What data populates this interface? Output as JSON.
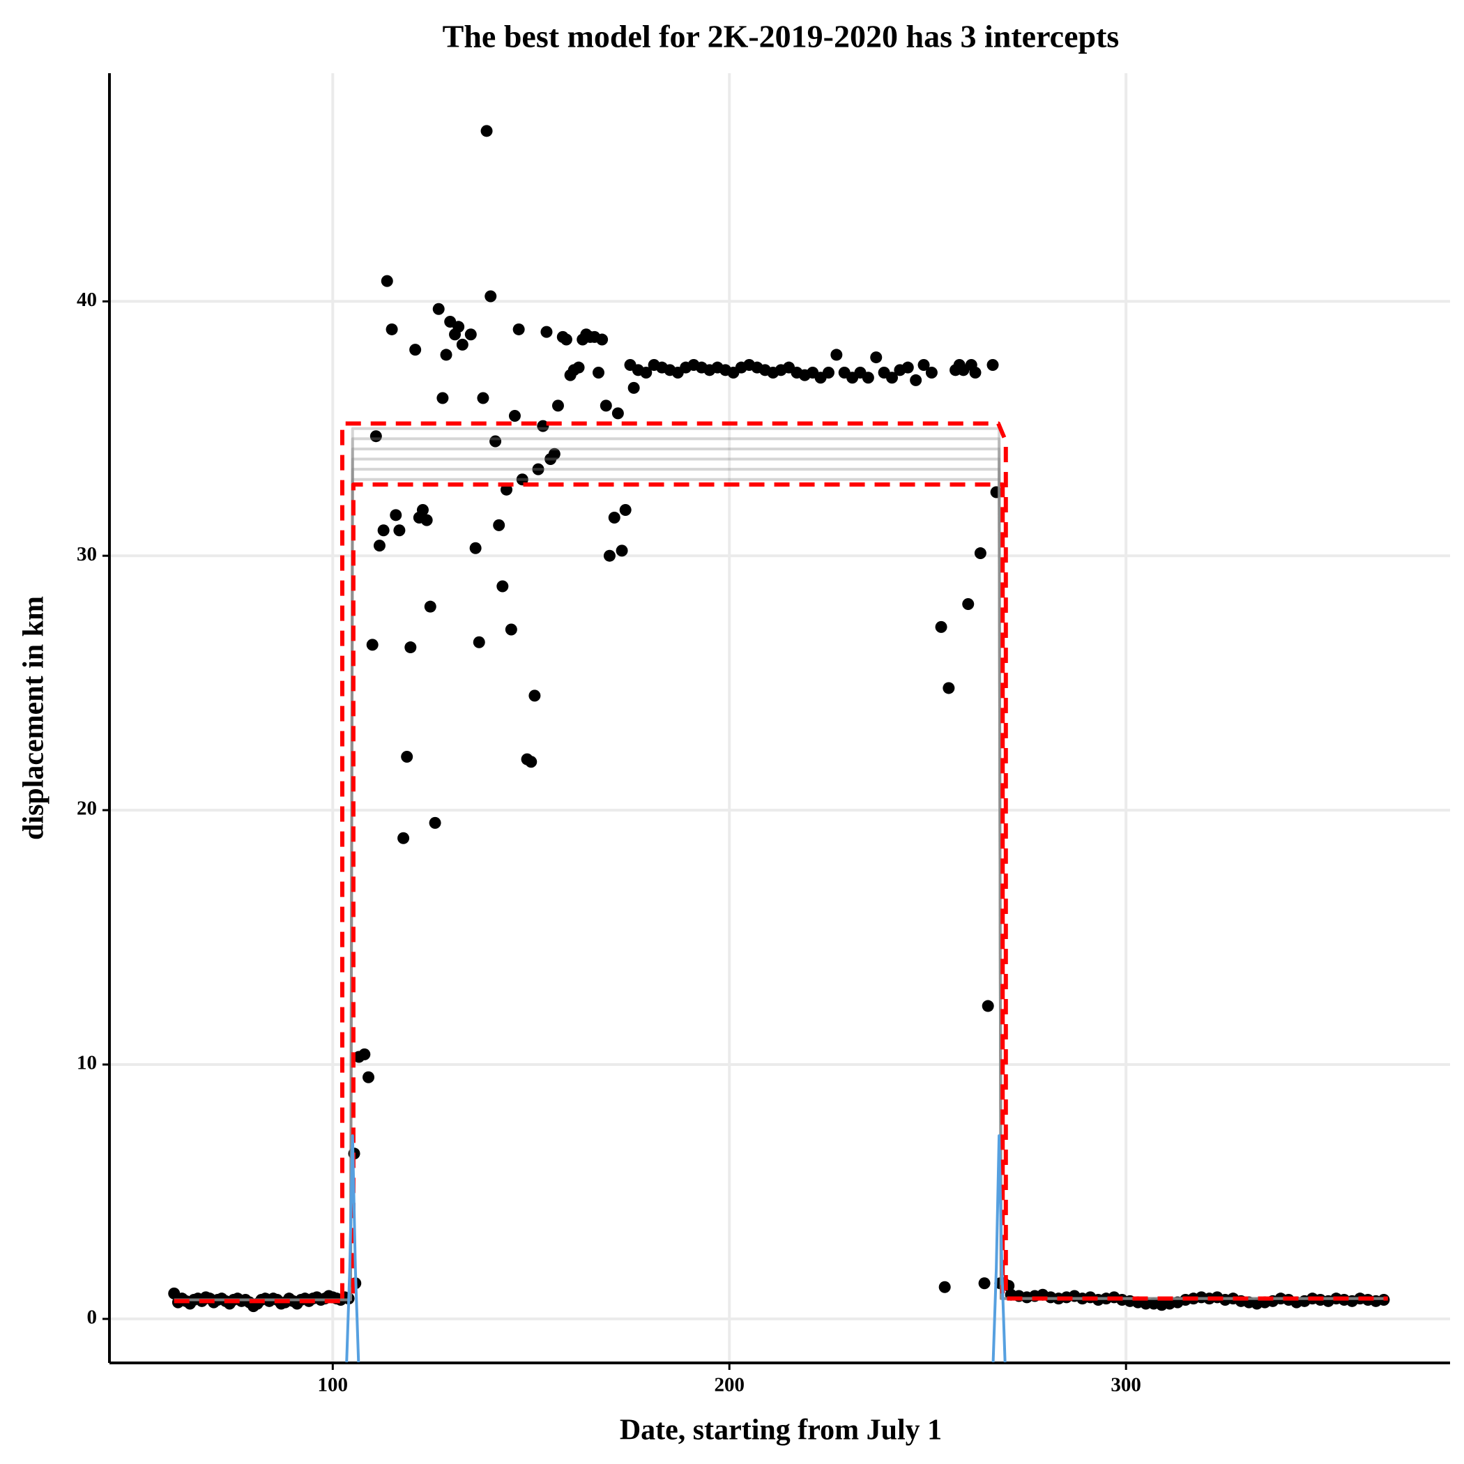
{
  "chart_data": {
    "type": "scatter",
    "title": "The best model for 2K-2019-2020 has 3 intercepts",
    "x_label": "Date, starting from July 1",
    "y_label": "displacement in km",
    "xlim": [
      43.7,
      381.7
    ],
    "ylim": [
      -1.73,
      48.97
    ],
    "xticks": [
      100,
      200,
      300
    ],
    "yticks": [
      0,
      10,
      20,
      30,
      40
    ],
    "grid": true,
    "series": [
      {
        "type": "scatter",
        "color": "#000000",
        "x": [
          60,
          61,
          62,
          63,
          64,
          65,
          66,
          67,
          68,
          69,
          70,
          71,
          72,
          73,
          74,
          75,
          76,
          77,
          78,
          79,
          80,
          81,
          82,
          83,
          84,
          85,
          86,
          87,
          88,
          89,
          90,
          91,
          92,
          93,
          94,
          95,
          96,
          97,
          98,
          99,
          100,
          101,
          102,
          103,
          104,
          105.4,
          105.7,
          106.6,
          108,
          109,
          110,
          110.9,
          111.8,
          112.8,
          113.7,
          114.9,
          115.9,
          116.8,
          117.8,
          118.7,
          119.6,
          120.8,
          121.8,
          122.7,
          123.7,
          124.6,
          125.8,
          126.7,
          127.7,
          128.6,
          129.6,
          130.8,
          131.7,
          132.7,
          134.8,
          136,
          136.9,
          137.9,
          138.8,
          139.8,
          141,
          141.9,
          142.8,
          143.8,
          145,
          145.9,
          146.9,
          147.8,
          149,
          150,
          150.9,
          151.8,
          153,
          153.9,
          154.9,
          155.9,
          156.8,
          158,
          158.9,
          159.9,
          160.8,
          162,
          163,
          163.9,
          164.9,
          166,
          167,
          167.9,
          168.9,
          169.8,
          171,
          171.9,
          172.9,
          173.8,
          175,
          175.9,
          177,
          179,
          181,
          183,
          185,
          187,
          189,
          191,
          193,
          195,
          197,
          199,
          201,
          203,
          205,
          207,
          209,
          211,
          213,
          215,
          217,
          219,
          221,
          223,
          225,
          227,
          229,
          231,
          233,
          235,
          237,
          239,
          241,
          243,
          245,
          247,
          249,
          251,
          253.4,
          254.3,
          255.3,
          257,
          258,
          259,
          260.2,
          261,
          262,
          263.3,
          264.3,
          265.2,
          266.4,
          267.3,
          268.3,
          269.2,
          270.4,
          271,
          273,
          275,
          277,
          279,
          281,
          283,
          285,
          287,
          289,
          291,
          293,
          295,
          297,
          299,
          301,
          303,
          305,
          307,
          309,
          311,
          313,
          315,
          317,
          319,
          321,
          323,
          325,
          327,
          329,
          331,
          333,
          335,
          337,
          339,
          341,
          343,
          345,
          347,
          349,
          351,
          353,
          355,
          357,
          359,
          361,
          363,
          365
        ],
        "values": [
          1.0,
          0.65,
          0.8,
          0.7,
          0.6,
          0.75,
          0.8,
          0.7,
          0.85,
          0.8,
          0.65,
          0.75,
          0.8,
          0.7,
          0.6,
          0.75,
          0.8,
          0.7,
          0.75,
          0.65,
          0.5,
          0.6,
          0.75,
          0.8,
          0.7,
          0.8,
          0.75,
          0.6,
          0.65,
          0.8,
          0.7,
          0.6,
          0.75,
          0.8,
          0.7,
          0.8,
          0.85,
          0.75,
          0.8,
          0.9,
          0.85,
          0.8,
          0.75,
          0.85,
          0.8,
          6.5,
          1.4,
          10.3,
          10.4,
          9.5,
          26.5,
          34.7,
          30.4,
          31.0,
          40.8,
          38.9,
          31.6,
          31.0,
          18.9,
          22.1,
          26.4,
          38.1,
          31.5,
          31.8,
          31.4,
          28.0,
          19.5,
          39.7,
          36.2,
          37.9,
          39.2,
          38.7,
          39.0,
          38.3,
          38.7,
          30.3,
          26.6,
          36.2,
          46.7,
          40.2,
          34.5,
          31.2,
          28.8,
          32.6,
          27.1,
          35.5,
          38.9,
          33.0,
          22.0,
          21.9,
          24.5,
          33.4,
          35.1,
          38.8,
          33.8,
          34.0,
          35.9,
          38.6,
          38.5,
          37.1,
          37.3,
          37.4,
          38.5,
          38.7,
          38.6,
          38.6,
          37.2,
          38.5,
          35.9,
          30.0,
          31.5,
          35.6,
          30.2,
          31.8,
          37.5,
          36.6,
          37.3,
          37.2,
          37.5,
          37.4,
          37.3,
          37.2,
          37.4,
          37.5,
          37.4,
          37.3,
          37.4,
          37.3,
          37.2,
          37.4,
          37.5,
          37.4,
          37.3,
          37.2,
          37.3,
          37.4,
          37.2,
          37.1,
          37.2,
          37.0,
          37.2,
          37.9,
          37.2,
          37.0,
          37.2,
          37.0,
          37.8,
          37.2,
          37.0,
          37.3,
          37.4,
          36.9,
          37.5,
          37.2,
          27.2,
          1.25,
          24.8,
          37.3,
          37.5,
          37.3,
          28.1,
          37.5,
          37.2,
          30.1,
          1.4,
          12.3,
          37.5,
          32.5,
          1.4,
          1.4,
          1.3,
          0.95,
          0.9,
          0.85,
          0.9,
          0.95,
          0.85,
          0.8,
          0.85,
          0.9,
          0.8,
          0.85,
          0.75,
          0.8,
          0.85,
          0.75,
          0.7,
          0.65,
          0.6,
          0.6,
          0.55,
          0.6,
          0.65,
          0.75,
          0.8,
          0.85,
          0.8,
          0.85,
          0.75,
          0.8,
          0.7,
          0.65,
          0.6,
          0.65,
          0.7,
          0.8,
          0.75,
          0.65,
          0.7,
          0.8,
          0.75,
          0.7,
          0.8,
          0.75,
          0.7,
          0.8,
          0.75,
          0.7,
          0.75
        ]
      },
      {
        "type": "line",
        "color": "#888888",
        "opacity": 0.35,
        "x": [
          60,
          104.5,
          105,
          268,
          268.5,
          366
        ],
        "values": [
          0.75,
          0.75,
          33.0,
          33.0,
          0.8,
          0.8
        ]
      },
      {
        "type": "line",
        "color": "#888888",
        "opacity": 0.35,
        "x": [
          60,
          104.5,
          105,
          268,
          268.5,
          366
        ],
        "values": [
          0.75,
          0.75,
          33.4,
          33.4,
          0.8,
          0.8
        ]
      },
      {
        "type": "line",
        "color": "#888888",
        "opacity": 0.35,
        "x": [
          60,
          104.5,
          105,
          268,
          268.5,
          366
        ],
        "values": [
          0.75,
          0.75,
          33.8,
          33.8,
          0.8,
          0.8
        ]
      },
      {
        "type": "line",
        "color": "#888888",
        "opacity": 0.35,
        "x": [
          60,
          104.5,
          105,
          268,
          268.5,
          366
        ],
        "values": [
          0.75,
          0.75,
          34.2,
          34.2,
          0.8,
          0.8
        ]
      },
      {
        "type": "line",
        "color": "#888888",
        "opacity": 0.35,
        "x": [
          60,
          104.5,
          105,
          268,
          268.5,
          366
        ],
        "values": [
          0.75,
          0.75,
          34.6,
          34.6,
          0.8,
          0.8
        ]
      },
      {
        "type": "line",
        "color": "#888888",
        "opacity": 0.35,
        "x": [
          60,
          104.5,
          105,
          268,
          268.5,
          366
        ],
        "values": [
          0.75,
          0.75,
          35.0,
          35.0,
          0.8,
          0.8
        ]
      },
      {
        "type": "line",
        "color": "#ff0000",
        "dash": true,
        "x": [
          102.4,
          102.4,
          267.8,
          269.7,
          269.7
        ],
        "values": [
          0.8,
          35.2,
          35.2,
          34.5,
          0.9
        ]
      },
      {
        "type": "line",
        "color": "#ff0000",
        "dash": true,
        "x": [
          105.2,
          105.2,
          268.9,
          268.9
        ],
        "values": [
          1.0,
          32.8,
          32.8,
          1.0
        ]
      },
      {
        "type": "line",
        "color": "#ff0000",
        "dash": true,
        "x": [
          60,
          104,
          187,
          270,
          366
        ],
        "values": [
          0.7,
          0.7,
          null,
          0.8,
          0.8
        ]
      },
      {
        "type": "line",
        "color": "#56a0e0",
        "x": [
          103.5,
          104.3,
          105,
          105.7,
          106.5,
          187,
          266.5,
          267.3,
          268,
          268.7,
          269.5
        ],
        "values": [
          -1.7,
          2,
          7.2,
          2,
          -1.7,
          null,
          -1.7,
          2,
          7.2,
          2,
          -1.7
        ]
      }
    ]
  }
}
